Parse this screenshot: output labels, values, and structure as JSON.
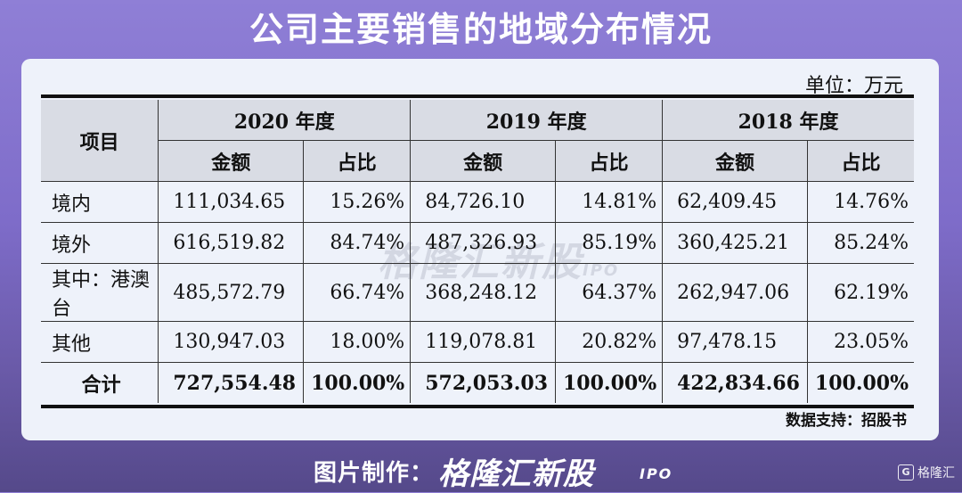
{
  "title": "公司主要销售的地域分布情况",
  "unit": "单位：万元",
  "table": {
    "item_header": "项目",
    "years": [
      "2020 年度",
      "2019 年度",
      "2018 年度"
    ],
    "sub_headers": [
      "金额",
      "占比"
    ],
    "rows": [
      {
        "item": "境内",
        "values": [
          "111,034.65",
          "15.26%",
          "84,726.10",
          "14.81%",
          "62,409.45",
          "14.76%"
        ]
      },
      {
        "item": "境外",
        "values": [
          "616,519.82",
          "84.74%",
          "487,326.93",
          "85.19%",
          "360,425.21",
          "85.24%"
        ]
      },
      {
        "item": "其中：港澳台",
        "values": [
          "485,572.79",
          "66.74%",
          "368,248.12",
          "64.37%",
          "262,947.06",
          "62.19%"
        ]
      },
      {
        "item": "其他",
        "values": [
          "130,947.03",
          "18.00%",
          "119,078.81",
          "20.82%",
          "97,478.15",
          "23.05%"
        ]
      }
    ],
    "total": {
      "item": "合计",
      "values": [
        "727,554.48",
        "100.00%",
        "572,053.03",
        "100.00%",
        "422,834.66",
        "100.00%"
      ]
    }
  },
  "source": "数据支持：招股书",
  "watermark": {
    "text": "格隆汇新股",
    "sub": "IPO"
  },
  "footer": {
    "label": "图片制作：",
    "brand": "格隆汇新股",
    "ipo": "IPO"
  },
  "corner": {
    "icon": "G",
    "text": "格隆汇"
  }
}
